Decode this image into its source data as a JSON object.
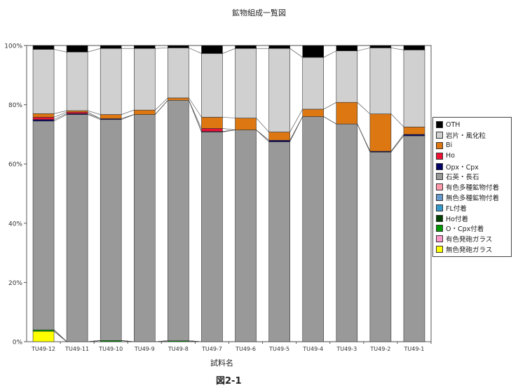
{
  "chart_data": {
    "type": "bar",
    "stacked": true,
    "title": "鉱物組成一覧図",
    "xlabel": "試料名",
    "ylabel": "",
    "caption": "図2-1",
    "ylim": [
      0,
      100
    ],
    "yticks": [
      "0%",
      "20%",
      "40%",
      "60%",
      "80%",
      "100%"
    ],
    "legend_position": "right",
    "categories": [
      "TU49-12",
      "TU49-11",
      "TU49-10",
      "TU49-9",
      "TU49-8",
      "TU49-7",
      "TU49-6",
      "TU49-5",
      "TU49-4",
      "TU49-3",
      "TU49-2",
      "TU49-1"
    ],
    "series": [
      {
        "name": "無色発砲ガラス",
        "color": "#ffff00",
        "values": [
          3.5,
          0,
          0,
          0,
          0,
          0,
          0,
          0,
          0,
          0,
          0,
          0
        ]
      },
      {
        "name": "有色発砲ガラス",
        "color": "#ff99cc",
        "values": [
          0,
          0,
          0,
          0,
          0,
          0,
          0,
          0,
          0,
          0,
          0,
          0
        ]
      },
      {
        "name": "O・Cpx付着",
        "color": "#009900",
        "values": [
          0.5,
          0,
          0.4,
          0,
          0.3,
          0,
          0,
          0,
          0,
          0,
          0,
          0
        ]
      },
      {
        "name": "Ho付着",
        "color": "#004000",
        "values": [
          0,
          0,
          0,
          0,
          0,
          0,
          0,
          0,
          0,
          0,
          0,
          0
        ]
      },
      {
        "name": "FL付着",
        "color": "#3399cc",
        "values": [
          0,
          0,
          0,
          0,
          0,
          0,
          0,
          0,
          0,
          0,
          0,
          0
        ]
      },
      {
        "name": "無色多種鉱物付着",
        "color": "#6699cc",
        "values": [
          0,
          0,
          0,
          0,
          0,
          0,
          0,
          0,
          0,
          0,
          0,
          0
        ]
      },
      {
        "name": "有色多種鉱物付着",
        "color": "#ff99aa",
        "values": [
          0,
          0,
          0,
          0,
          0,
          0,
          0,
          0,
          0,
          0,
          0,
          0
        ]
      },
      {
        "name": "石英・長石",
        "color": "#999999",
        "values": [
          70.5,
          76.7,
          74.6,
          76.7,
          81.2,
          70.8,
          71.5,
          67.5,
          76,
          73.5,
          64,
          69.5
        ]
      },
      {
        "name": "Opx・Cpx",
        "color": "#000066",
        "values": [
          0.5,
          0.3,
          0.3,
          0,
          0,
          0.2,
          0,
          0.5,
          0,
          0,
          0.3,
          0.5
        ]
      },
      {
        "name": "Ho",
        "color": "#ee1133",
        "values": [
          0.8,
          0.5,
          0,
          0,
          0,
          1,
          0,
          0,
          0,
          0,
          0,
          0
        ]
      },
      {
        "name": "Bi",
        "color": "#dd7711",
        "values": [
          1.2,
          0.5,
          1.4,
          1.5,
          0.8,
          3.8,
          4,
          2.8,
          2.5,
          7.3,
          12.6,
          2.5
        ]
      },
      {
        "name": "岩片・風化粒",
        "color": "#d0d0d0",
        "values": [
          21.7,
          19.8,
          22.3,
          20.8,
          16.9,
          21.5,
          23.5,
          28.2,
          17.5,
          17.4,
          22.3,
          26
        ]
      },
      {
        "name": "OTH",
        "color": "#000000",
        "values": [
          1.3,
          2.2,
          1,
          1,
          0.8,
          2.7,
          1,
          1,
          4,
          1.8,
          0.8,
          1.5
        ]
      }
    ]
  }
}
